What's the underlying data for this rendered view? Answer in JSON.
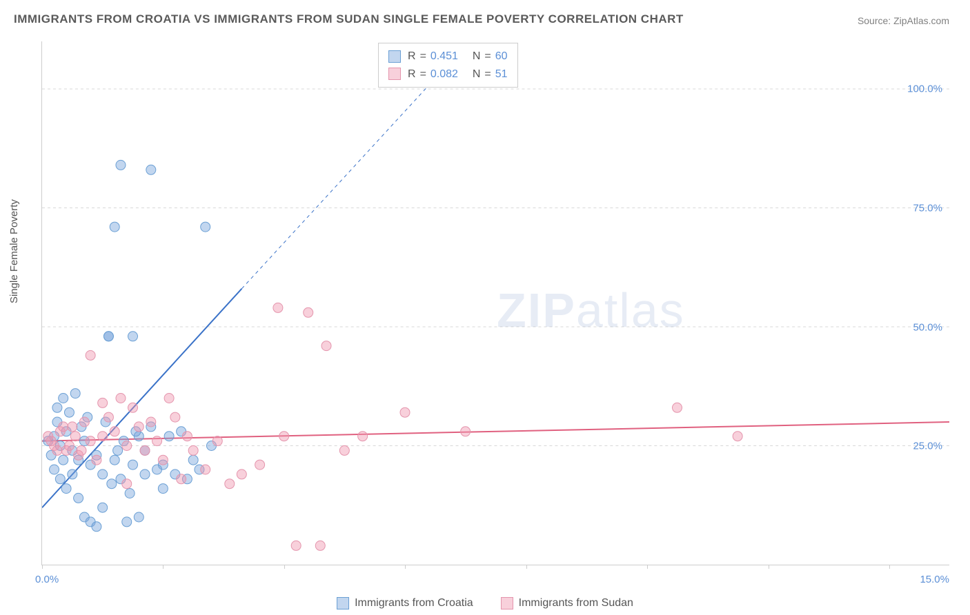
{
  "title": "IMMIGRANTS FROM CROATIA VS IMMIGRANTS FROM SUDAN SINGLE FEMALE POVERTY CORRELATION CHART",
  "source": "Source: ZipAtlas.com",
  "ylabel": "Single Female Poverty",
  "watermark_zip": "ZIP",
  "watermark_rest": "atlas",
  "chart": {
    "type": "scatter",
    "xlim": [
      0,
      15
    ],
    "ylim": [
      0,
      110
    ],
    "x_ticks": [
      0,
      2,
      4,
      6,
      8,
      10,
      12,
      14
    ],
    "x_tick_labels": {
      "0": "0.0%",
      "15": "15.0%"
    },
    "y_ticks": [
      25,
      50,
      75,
      100
    ],
    "y_tick_labels": [
      "25.0%",
      "50.0%",
      "75.0%",
      "100.0%"
    ],
    "background_color": "#ffffff",
    "grid_color": "#d8d8d8",
    "axis_color": "#cccccc",
    "series": [
      {
        "name": "Immigrants from Croatia",
        "color_fill": "rgba(120,165,220,0.45)",
        "color_stroke": "#6a9fd4",
        "marker_radius": 7,
        "R": "0.451",
        "N": "60",
        "trend": {
          "x1": 0,
          "y1": 12,
          "x2": 3.3,
          "y2": 58,
          "extend_x2": 6.7,
          "extend_y2": 105,
          "color": "#3a72c8",
          "width": 2
        },
        "points": [
          [
            0.1,
            26
          ],
          [
            0.15,
            23
          ],
          [
            0.2,
            27
          ],
          [
            0.2,
            20
          ],
          [
            0.25,
            30
          ],
          [
            0.3,
            18
          ],
          [
            0.3,
            25
          ],
          [
            0.35,
            22
          ],
          [
            0.4,
            28
          ],
          [
            0.4,
            16
          ],
          [
            0.5,
            24
          ],
          [
            0.5,
            19
          ],
          [
            0.6,
            22
          ],
          [
            0.6,
            14
          ],
          [
            0.7,
            26
          ],
          [
            0.7,
            10
          ],
          [
            0.8,
            21
          ],
          [
            0.8,
            9
          ],
          [
            0.9,
            8
          ],
          [
            0.9,
            23
          ],
          [
            1.0,
            19
          ],
          [
            1.0,
            12
          ],
          [
            1.1,
            48
          ],
          [
            1.1,
            48
          ],
          [
            1.2,
            71
          ],
          [
            1.2,
            22
          ],
          [
            1.3,
            84
          ],
          [
            1.3,
            18
          ],
          [
            1.4,
            9
          ],
          [
            1.5,
            48
          ],
          [
            1.5,
            21
          ],
          [
            1.6,
            10
          ],
          [
            1.6,
            27
          ],
          [
            1.7,
            19
          ],
          [
            1.8,
            83
          ],
          [
            1.8,
            29
          ],
          [
            2.0,
            21
          ],
          [
            2.0,
            16
          ],
          [
            2.1,
            27
          ],
          [
            2.2,
            19
          ],
          [
            2.3,
            28
          ],
          [
            2.5,
            22
          ],
          [
            2.7,
            71
          ],
          [
            2.8,
            25
          ],
          [
            0.55,
            36
          ],
          [
            0.45,
            32
          ],
          [
            0.35,
            35
          ],
          [
            0.25,
            33
          ],
          [
            0.65,
            29
          ],
          [
            0.75,
            31
          ],
          [
            1.05,
            30
          ],
          [
            1.15,
            17
          ],
          [
            1.25,
            24
          ],
          [
            1.35,
            26
          ],
          [
            1.45,
            15
          ],
          [
            1.55,
            28
          ],
          [
            1.7,
            24
          ],
          [
            1.9,
            20
          ],
          [
            2.4,
            18
          ],
          [
            2.6,
            20
          ]
        ]
      },
      {
        "name": "Immigrants from Sudan",
        "color_fill": "rgba(240,150,175,0.45)",
        "color_stroke": "#e494ac",
        "marker_radius": 7,
        "R": "0.082",
        "N": "51",
        "trend": {
          "x1": 0,
          "y1": 26,
          "x2": 15,
          "y2": 30,
          "color": "#e0607f",
          "width": 2
        },
        "points": [
          [
            0.1,
            27
          ],
          [
            0.2,
            25
          ],
          [
            0.3,
            28
          ],
          [
            0.4,
            24
          ],
          [
            0.5,
            29
          ],
          [
            0.6,
            23
          ],
          [
            0.7,
            30
          ],
          [
            0.8,
            26
          ],
          [
            0.8,
            44
          ],
          [
            0.9,
            22
          ],
          [
            1.0,
            34
          ],
          [
            1.0,
            27
          ],
          [
            1.1,
            31
          ],
          [
            1.2,
            28
          ],
          [
            1.3,
            35
          ],
          [
            1.4,
            25
          ],
          [
            1.4,
            17
          ],
          [
            1.5,
            33
          ],
          [
            1.6,
            29
          ],
          [
            1.7,
            24
          ],
          [
            1.8,
            30
          ],
          [
            1.9,
            26
          ],
          [
            2.0,
            22
          ],
          [
            2.1,
            35
          ],
          [
            2.2,
            31
          ],
          [
            2.3,
            18
          ],
          [
            2.4,
            27
          ],
          [
            2.5,
            24
          ],
          [
            2.7,
            20
          ],
          [
            2.9,
            26
          ],
          [
            3.1,
            17
          ],
          [
            3.3,
            19
          ],
          [
            3.6,
            21
          ],
          [
            3.9,
            54
          ],
          [
            4.0,
            27
          ],
          [
            4.2,
            4
          ],
          [
            4.4,
            53
          ],
          [
            4.6,
            4
          ],
          [
            4.7,
            46
          ],
          [
            5.0,
            24
          ],
          [
            5.3,
            27
          ],
          [
            6.0,
            32
          ],
          [
            7.0,
            28
          ],
          [
            10.5,
            33
          ],
          [
            11.5,
            27
          ],
          [
            0.15,
            26
          ],
          [
            0.25,
            24
          ],
          [
            0.35,
            29
          ],
          [
            0.45,
            25
          ],
          [
            0.55,
            27
          ],
          [
            0.65,
            24
          ]
        ]
      }
    ]
  },
  "legend": {
    "croatia": "Immigrants from Croatia",
    "sudan": "Immigrants from Sudan"
  },
  "stats_labels": {
    "R": "R",
    "eq": "=",
    "N": "N"
  }
}
